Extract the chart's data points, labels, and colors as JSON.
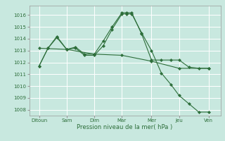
{
  "title": "",
  "xlabel": "Pression niveau de la mer( hPa )",
  "background_color": "#c8e8df",
  "grid_color": "#ffffff",
  "line_color": "#2d6e3a",
  "ylim": [
    1007.5,
    1016.8
  ],
  "xlim": [
    -0.2,
    9.5
  ],
  "xtick_labels": [
    "Ditoun",
    "Sam",
    "Dim",
    "Mar",
    "Mer",
    "Jeu",
    "Ven"
  ],
  "xtick_positions": [
    0.3,
    1.7,
    3.1,
    4.5,
    6.0,
    7.4,
    8.9
  ],
  "ytick_values": [
    1008,
    1009,
    1010,
    1011,
    1012,
    1013,
    1014,
    1015,
    1016
  ],
  "series": [
    {
      "x": [
        0.3,
        0.75,
        1.2,
        1.7,
        2.15,
        2.6,
        3.1,
        3.55,
        4.0,
        4.5,
        4.75,
        5.0,
        5.5,
        6.0,
        6.5,
        7.0,
        7.4,
        7.9,
        8.4,
        8.9
      ],
      "y": [
        1011.7,
        1013.2,
        1014.2,
        1013.1,
        1013.3,
        1012.7,
        1012.7,
        1013.8,
        1015.0,
        1016.2,
        1016.2,
        1016.2,
        1014.4,
        1012.2,
        1012.2,
        1012.2,
        1012.2,
        1011.6,
        1011.5,
        1011.5
      ]
    },
    {
      "x": [
        0.3,
        0.75,
        1.2,
        1.7,
        2.15,
        2.6,
        3.1,
        3.55,
        4.0,
        4.5,
        4.75,
        5.0,
        5.5,
        6.0,
        6.5,
        7.0,
        7.4,
        7.9,
        8.4,
        8.9
      ],
      "y": [
        1011.7,
        1013.2,
        1014.1,
        1013.1,
        1013.2,
        1012.6,
        1012.6,
        1013.4,
        1014.8,
        1016.1,
        1016.1,
        1016.1,
        1014.5,
        1013.0,
        1011.1,
        1010.1,
        1009.2,
        1008.5,
        1007.8,
        1007.8
      ]
    },
    {
      "x": [
        0.3,
        1.7,
        3.1,
        4.5,
        6.0,
        7.4,
        8.9
      ],
      "y": [
        1013.2,
        1013.1,
        1012.7,
        1012.6,
        1012.1,
        1011.5,
        1011.5
      ]
    }
  ]
}
